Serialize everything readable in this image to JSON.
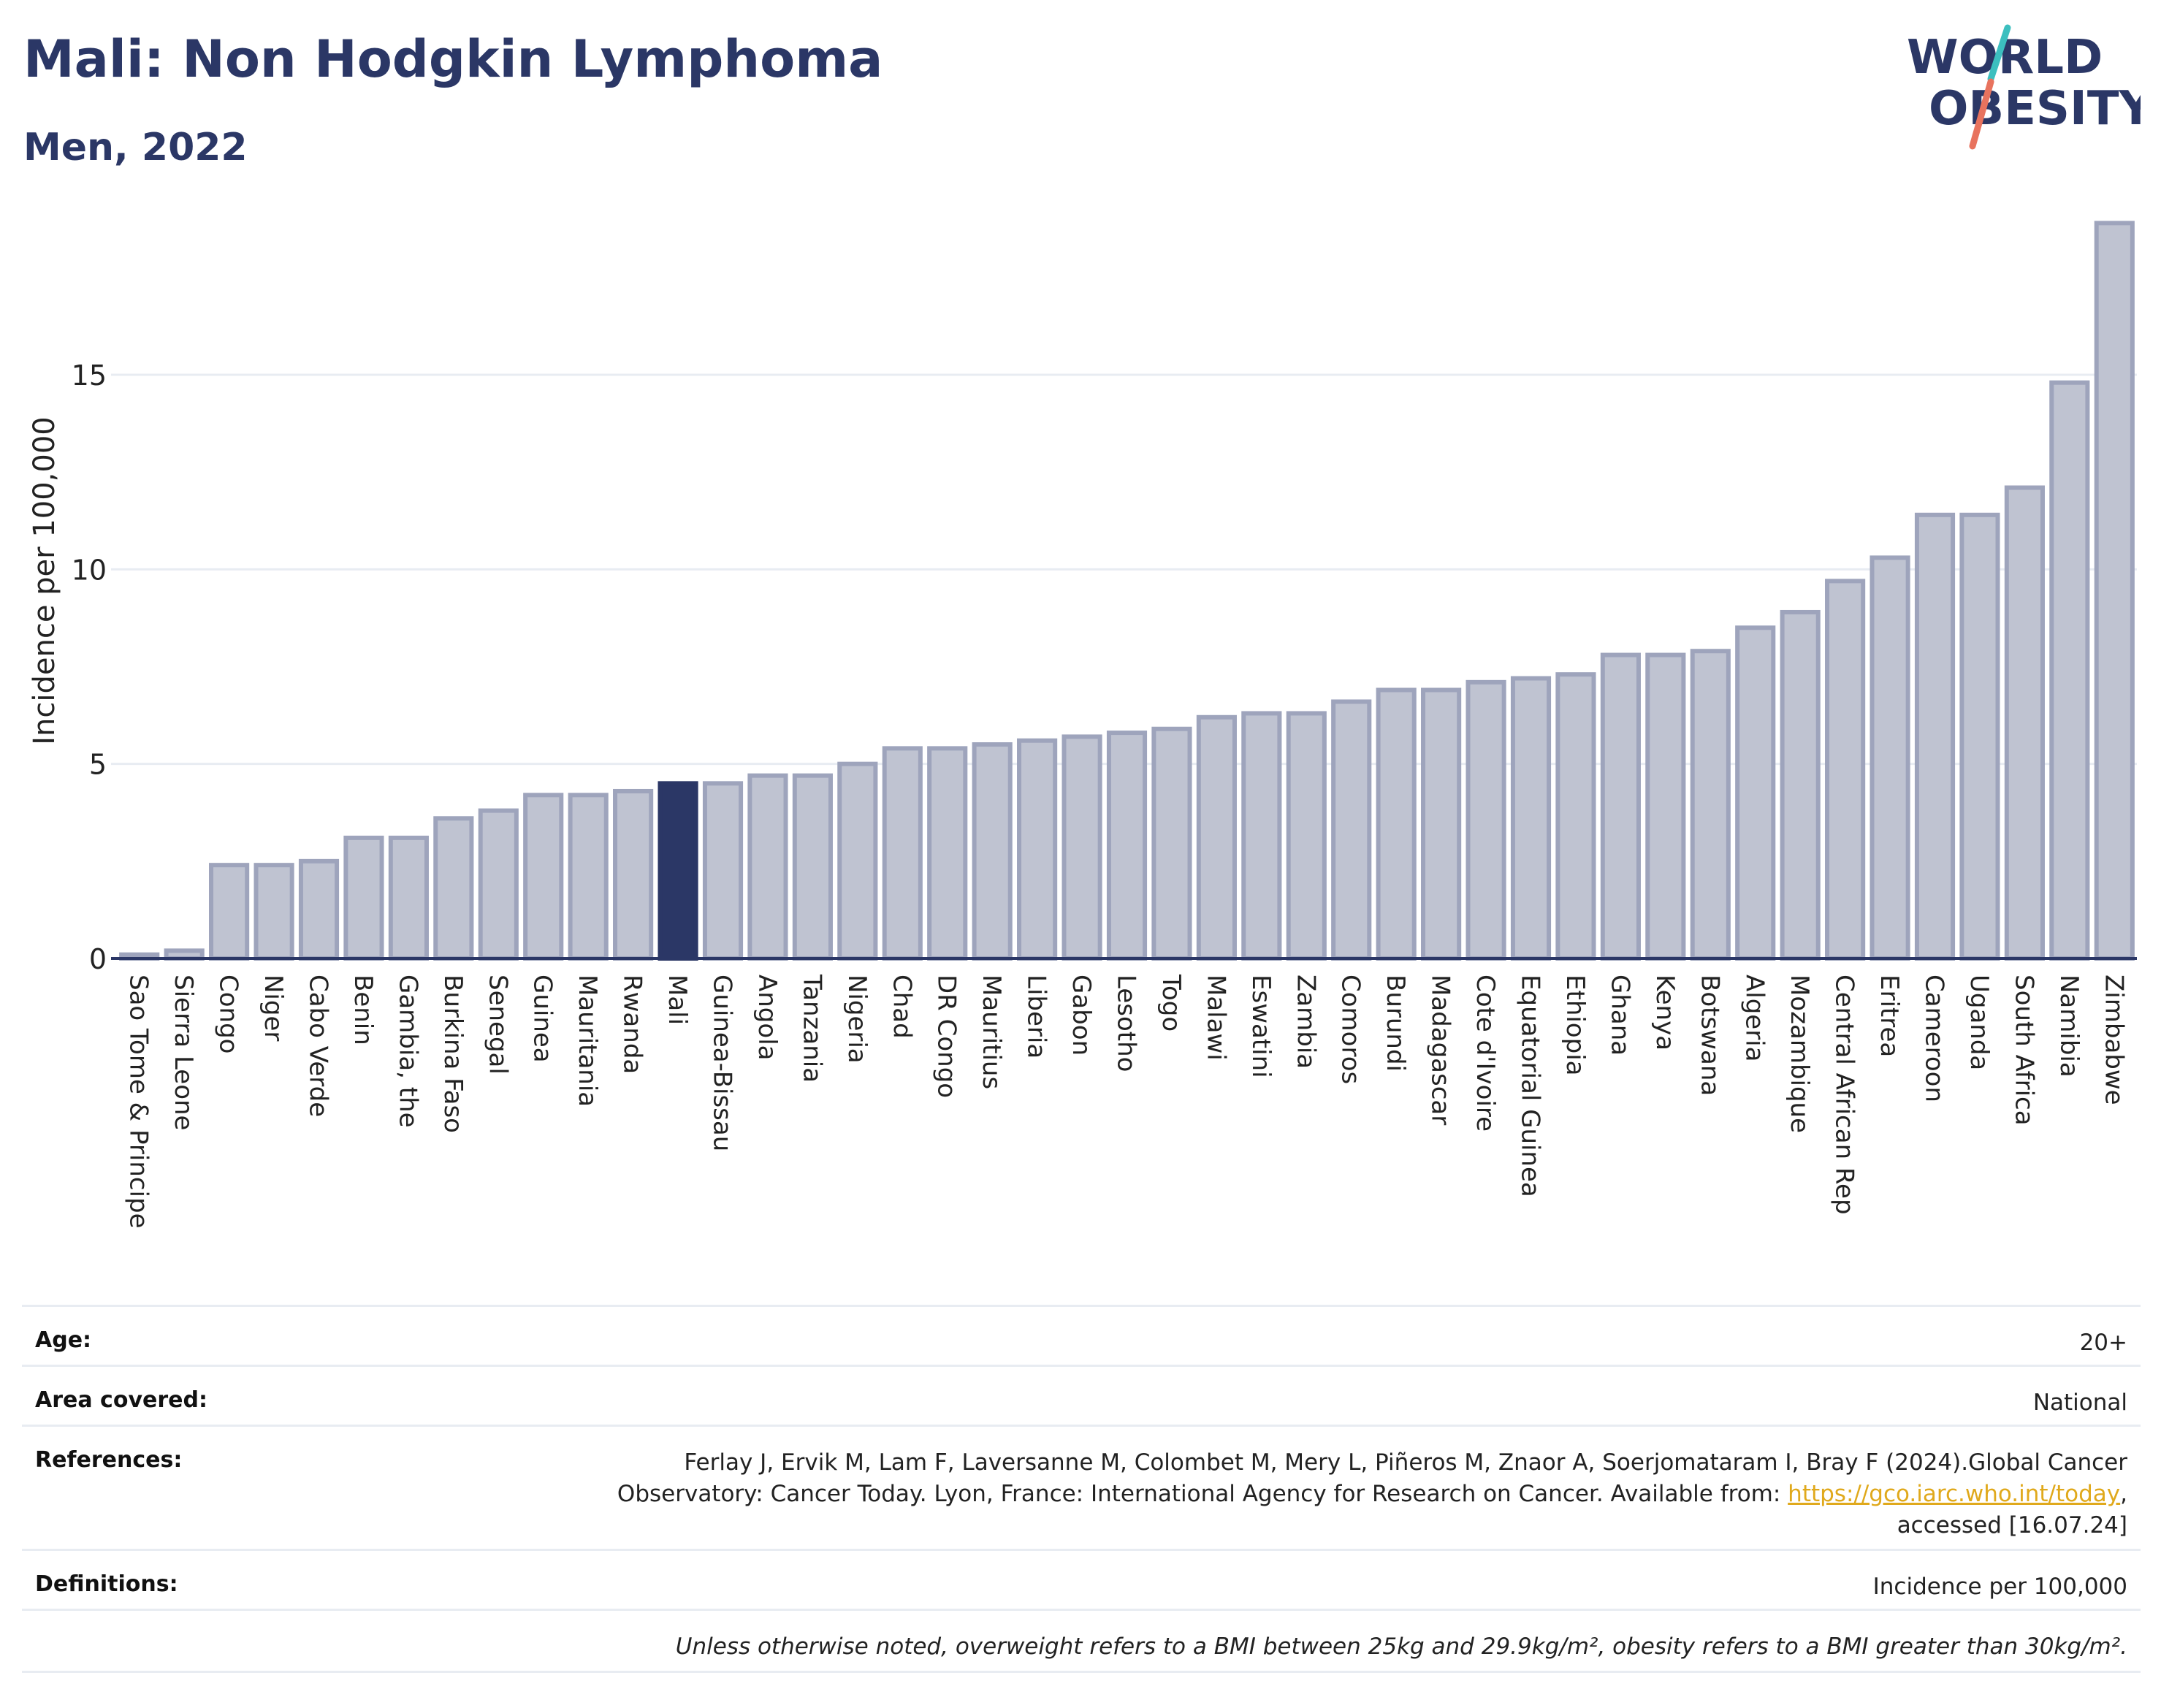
{
  "header": {
    "title": "Mali: Non Hodgkin Lymphoma",
    "subtitle": "Men, 2022",
    "logo_line1": "WORLD",
    "logo_line2": "OBESITY"
  },
  "colors": {
    "bar": "#bfc3d1",
    "bar_border": "#9ea4bc",
    "highlight": "#2b3766",
    "title": "#2b3766",
    "grid": "#e8ecf2",
    "link": "#e0a91c",
    "logo_teal": "#3cbfbf",
    "logo_coral": "#e8735e"
  },
  "chart_data": {
    "type": "bar",
    "ylabel": "Incidence per 100,000",
    "ylim": [
      0,
      19
    ],
    "yticks": [
      0,
      5,
      10,
      15
    ],
    "grid": true,
    "highlight": "Mali",
    "categories": [
      "Sao Tome & Principe",
      "Sierra Leone",
      "Congo",
      "Niger",
      "Cabo Verde",
      "Benin",
      "Gambia, the",
      "Burkina Faso",
      "Senegal",
      "Guinea",
      "Mauritania",
      "Rwanda",
      "Mali",
      "Guinea-Bissau",
      "Angola",
      "Tanzania",
      "Nigeria",
      "Chad",
      "DR Congo",
      "Mauritius",
      "Liberia",
      "Gabon",
      "Lesotho",
      "Togo",
      "Malawi",
      "Eswatini",
      "Zambia",
      "Comoros",
      "Burundi",
      "Madagascar",
      "Cote d'Ivoire",
      "Equatorial Guinea",
      "Ethiopia",
      "Ghana",
      "Kenya",
      "Botswana",
      "Algeria",
      "Mozambique",
      "Central African Rep",
      "Eritrea",
      "Cameroon",
      "Uganda",
      "South Africa",
      "Namibia",
      "Zimbabwe"
    ],
    "values": [
      0.1,
      0.2,
      2.4,
      2.4,
      2.5,
      3.1,
      3.1,
      3.6,
      3.8,
      4.2,
      4.2,
      4.3,
      4.5,
      4.5,
      4.7,
      4.7,
      5.0,
      5.4,
      5.4,
      5.5,
      5.6,
      5.7,
      5.8,
      5.9,
      6.2,
      6.3,
      6.3,
      6.6,
      6.9,
      6.9,
      7.1,
      7.2,
      7.3,
      7.8,
      7.8,
      7.9,
      8.5,
      8.9,
      9.7,
      10.3,
      11.4,
      11.4,
      12.1,
      14.8,
      18.9
    ]
  },
  "info": {
    "age_label": "Age:",
    "age_value": "20+",
    "area_label": "Area covered:",
    "area_value": "National",
    "references_label": "References:",
    "references_line1": "Ferlay J, Ervik M, Lam F, Laversanne M, Colombet M, Mery L, Piñeros M, Znaor A, Soerjomataram I, Bray F (2024).Global Cancer",
    "references_line2_pre": "Observatory: Cancer Today. Lyon, France: International Agency for Research on Cancer. Available from: ",
    "references_link": "https://gco.iarc.who.int/today",
    "references_line2_post": ",",
    "references_line3": "accessed [16.07.24]",
    "definitions_label": "Definitions:",
    "definitions_value": "Incidence per 100,000",
    "note": "Unless otherwise noted, overweight refers to a BMI between 25kg and 29.9kg/m², obesity refers to a BMI greater than 30kg/m²."
  }
}
